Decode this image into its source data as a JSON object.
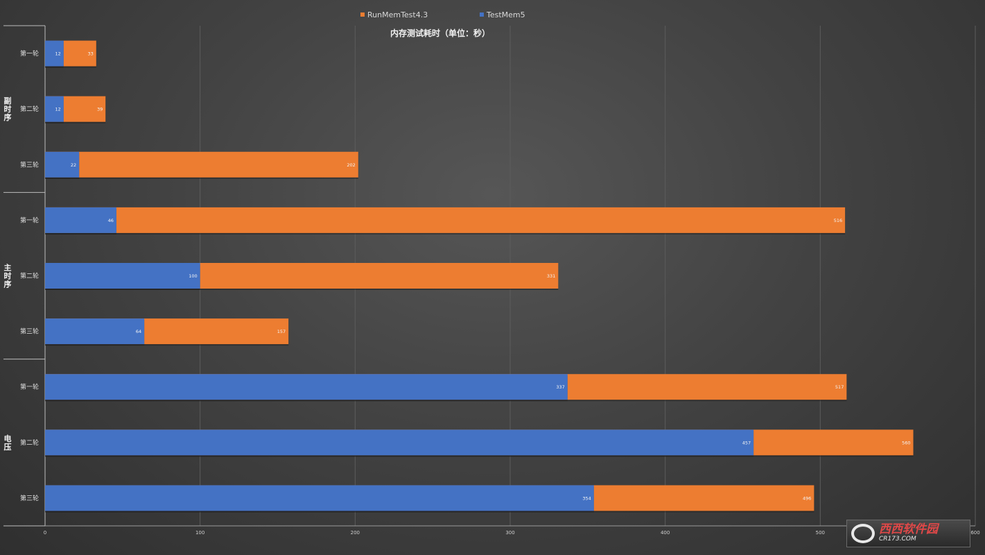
{
  "chart_data": {
    "type": "bar",
    "orientation": "horizontal",
    "stacked": false,
    "title": "内存测试耗时（单位：秒）",
    "xlabel": "",
    "ylabel": "",
    "xlim": [
      0,
      600
    ],
    "xticks": [
      "0",
      "100",
      "200",
      "300",
      "400",
      "500",
      "600"
    ],
    "grid": true,
    "legend_position": "top",
    "groups": [
      {
        "label": "副时序",
        "categories": [
          "第一轮",
          "第二轮",
          "第三轮"
        ]
      },
      {
        "label": "主时序",
        "categories": [
          "第一轮",
          "第二轮",
          "第三轮"
        ]
      },
      {
        "label": "电压",
        "categories": [
          "第一轮",
          "第二轮",
          "第三轮"
        ]
      }
    ],
    "series": [
      {
        "name": "RunMemTest4.3",
        "color": "#ed7d31",
        "values": [
          33,
          39,
          202,
          516,
          331,
          157,
          517,
          560,
          496
        ]
      },
      {
        "name": "TestMem5",
        "color": "#4472c4",
        "values": [
          12,
          12,
          22,
          46,
          100,
          64,
          337,
          457,
          354
        ]
      }
    ]
  },
  "watermark": {
    "main": "西西软件园",
    "sub": "CR173.COM"
  }
}
